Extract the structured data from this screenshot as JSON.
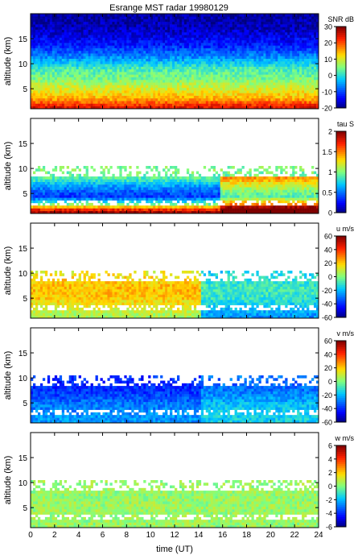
{
  "figure": {
    "title": "Esrange MST radar 19980129",
    "xlabel": "time (UT)"
  },
  "chart_data": [
    {
      "type": "heatmap",
      "quantity": "SNR",
      "colorbar_label": "SNR dB",
      "ylabel": "altitude (km)",
      "xlim": [
        0,
        24
      ],
      "ylim": [
        1,
        20
      ],
      "clim": [
        -20,
        30
      ],
      "xticks": [
        0,
        2,
        4,
        6,
        8,
        10,
        12,
        14,
        16,
        18,
        20,
        22,
        24
      ],
      "yticks": [
        5,
        10,
        15
      ],
      "cticks": [
        -20,
        -10,
        0,
        10,
        20,
        30
      ],
      "show_x_tick_labels": false,
      "profile": [
        [
          1.5,
          24
        ],
        [
          3,
          15
        ],
        [
          5,
          10
        ],
        [
          7,
          5
        ],
        [
          9,
          2
        ],
        [
          11,
          -5
        ],
        [
          14,
          -13
        ],
        [
          17,
          -17
        ],
        [
          20,
          -19
        ]
      ]
    },
    {
      "type": "heatmap",
      "quantity": "tau",
      "colorbar_label": "tau S",
      "ylabel": "altitude (km)",
      "xlim": [
        0,
        24
      ],
      "ylim": [
        1,
        20
      ],
      "clim": [
        0,
        2
      ],
      "xticks": [
        0,
        2,
        4,
        6,
        8,
        10,
        12,
        14,
        16,
        18,
        20,
        22,
        24
      ],
      "yticks": [
        5,
        10,
        15
      ],
      "cticks": [
        0,
        0.5,
        1,
        1.5,
        2
      ],
      "show_x_tick_labels": false,
      "profile": [
        [
          1.5,
          1.9
        ],
        [
          3,
          0.9
        ],
        [
          4.5,
          0.35
        ],
        [
          6.5,
          0.6
        ],
        [
          8,
          0.9
        ],
        [
          9.5,
          1.0
        ]
      ]
    },
    {
      "type": "heatmap",
      "quantity": "u",
      "colorbar_label": "u m/s",
      "ylabel": "altitude (km)",
      "xlim": [
        0,
        24
      ],
      "ylim": [
        1,
        20
      ],
      "clim": [
        -60,
        60
      ],
      "xticks": [
        0,
        2,
        4,
        6,
        8,
        10,
        12,
        14,
        16,
        18,
        20,
        22,
        24
      ],
      "yticks": [
        5,
        10,
        15
      ],
      "cticks": [
        -60,
        -40,
        -20,
        0,
        20,
        40,
        60
      ],
      "show_x_tick_labels": false,
      "profile": [
        [
          1.5,
          5
        ],
        [
          3,
          12
        ],
        [
          5,
          20
        ],
        [
          7,
          22
        ],
        [
          9,
          18
        ],
        [
          10,
          15
        ]
      ]
    },
    {
      "type": "heatmap",
      "quantity": "v",
      "colorbar_label": "v m/s",
      "ylabel": "altitude (km)",
      "xlim": [
        0,
        24
      ],
      "ylim": [
        1,
        20
      ],
      "clim": [
        -60,
        60
      ],
      "xticks": [
        0,
        2,
        4,
        6,
        8,
        10,
        12,
        14,
        16,
        18,
        20,
        22,
        24
      ],
      "yticks": [
        5,
        10,
        15
      ],
      "cticks": [
        -60,
        -40,
        -20,
        0,
        20,
        40,
        60
      ],
      "show_x_tick_labels": false,
      "profile": [
        [
          1.5,
          -25
        ],
        [
          3,
          -25
        ],
        [
          5,
          -30
        ],
        [
          7,
          -38
        ],
        [
          9,
          -42
        ],
        [
          10,
          -40
        ]
      ]
    },
    {
      "type": "heatmap",
      "quantity": "w",
      "colorbar_label": "w m/s",
      "ylabel": "altitude (km)",
      "xlim": [
        0,
        24
      ],
      "ylim": [
        1,
        20
      ],
      "clim": [
        -6,
        6
      ],
      "xticks": [
        0,
        2,
        4,
        6,
        8,
        10,
        12,
        14,
        16,
        18,
        20,
        22,
        24
      ],
      "yticks": [
        5,
        10,
        15
      ],
      "cticks": [
        -6,
        -4,
        -2,
        0,
        2,
        4,
        6
      ],
      "show_x_tick_labels": true,
      "profile": [
        [
          1.5,
          0.3
        ],
        [
          5,
          0.4
        ],
        [
          10,
          0.3
        ]
      ]
    }
  ]
}
